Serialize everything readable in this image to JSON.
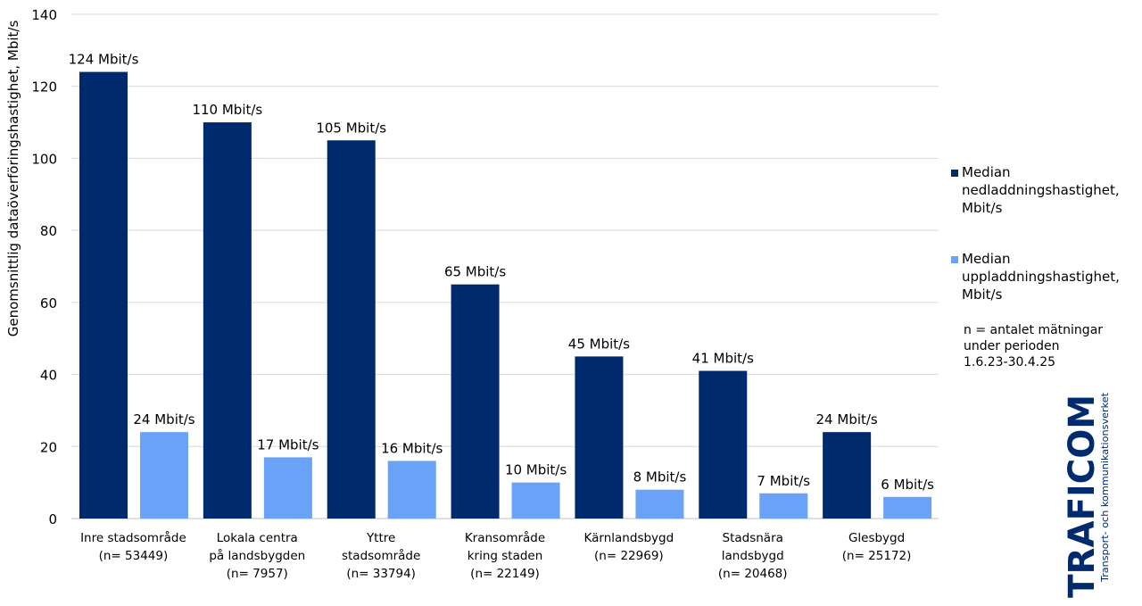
{
  "chart_data": {
    "type": "bar",
    "title": "",
    "ylabel": "Genomsnittlig dataöverföringshastighet, Mbit/s",
    "xlabel": "",
    "ylim": [
      0,
      140
    ],
    "yticks": [
      0,
      20,
      40,
      60,
      80,
      100,
      120,
      140
    ],
    "grid": true,
    "legend_position": "right",
    "categories": [
      [
        "Inre stadsområde",
        "(n= 53449)"
      ],
      [
        "Lokala centra",
        "på landsbygden",
        "(n= 7957)"
      ],
      [
        "Yttre",
        "stadsområde",
        "(n= 33794)"
      ],
      [
        "Kransområde",
        "kring staden",
        "(n= 22149)"
      ],
      [
        "Kärnlandsbygd",
        "(n= 22969)"
      ],
      [
        "Stadsnära",
        "landsbygd",
        "(n= 20468)"
      ],
      [
        "Glesbygd",
        "(n= 25172)"
      ]
    ],
    "series": [
      {
        "name": "Median nedladdningshastighet, Mbit/s",
        "color": "#002a6e",
        "values": [
          124,
          110,
          105,
          65,
          45,
          41,
          24
        ],
        "labels": [
          "124 Mbit/s",
          "110 Mbit/s",
          "105 Mbit/s",
          "65 Mbit/s",
          "45 Mbit/s",
          "41 Mbit/s",
          "24 Mbit/s"
        ]
      },
      {
        "name": "Median uppladdningshastighet, Mbit/s",
        "color": "#6aa2f8",
        "values": [
          24,
          17,
          16,
          10,
          8,
          7,
          6
        ],
        "labels": [
          "24 Mbit/s",
          "17 Mbit/s",
          "16 Mbit/s",
          "10 Mbit/s",
          "8 Mbit/s",
          "7 Mbit/s",
          "6 Mbit/s"
        ]
      }
    ]
  },
  "legend": {
    "items": [
      {
        "lines": [
          "Median",
          "nedladdningshastighet,",
          "Mbit/s"
        ],
        "color": "#002a6e"
      },
      {
        "lines": [
          "Median",
          "uppladdningshastighet,",
          "Mbit/s"
        ],
        "color": "#6aa2f8"
      }
    ]
  },
  "note": {
    "lines": [
      "n = antalet mätningar",
      "under perioden",
      "1.6.23-30.4.25"
    ]
  },
  "logo": {
    "wordmark": "TRAFICOM",
    "tagline": "Transport- och kommunikationsverket",
    "color": "#002a6e"
  }
}
